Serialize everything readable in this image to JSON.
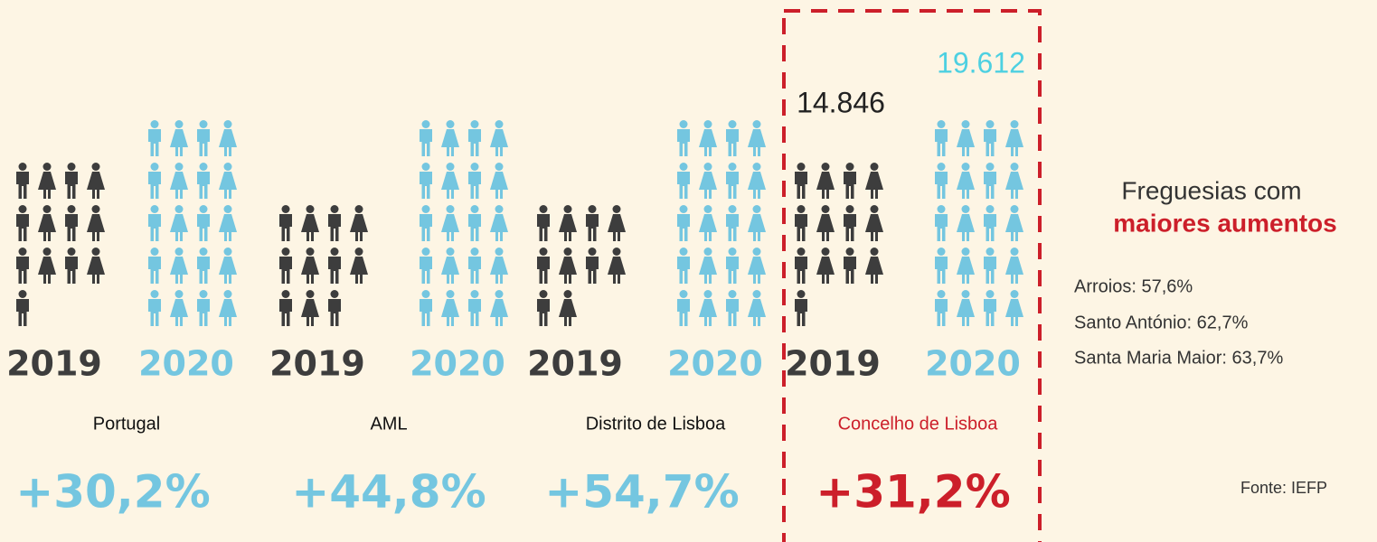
{
  "years": [
    "2019",
    "2020"
  ],
  "regions": [
    {
      "name": "Portugal",
      "change": "+30,2%"
    },
    {
      "name": "AML",
      "change": "+44,8%"
    },
    {
      "name": "Distrito de Lisboa",
      "change": "+54,7%"
    },
    {
      "name": "Concelho de Lisboa",
      "change": "+31,2%"
    }
  ],
  "highlight": {
    "value_2019": "14.846",
    "value_2020": "19.612"
  },
  "side_panel": {
    "title_line1": "Freguesias com",
    "title_line2": "maiores aumentos",
    "items": [
      "Arroios: 57,6%",
      "Santo António: 62,7%",
      "Santa Maria Maior: 63,7%"
    ]
  },
  "source": "Fonte: IEFP"
}
